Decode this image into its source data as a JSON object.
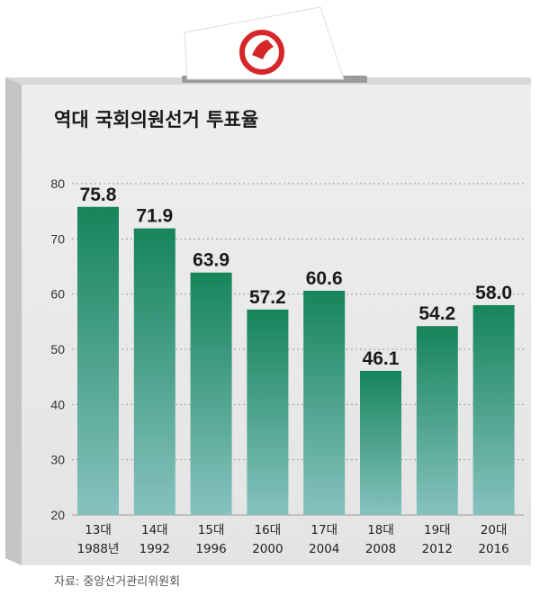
{
  "chart_data": {
    "type": "bar",
    "title": "역대 국회의원선거 투표율",
    "categories": [
      "13대",
      "14대",
      "15대",
      "16대",
      "17대",
      "18대",
      "19대",
      "20대"
    ],
    "years": [
      "1988년",
      "1992",
      "1996",
      "2000",
      "2004",
      "2008",
      "2012",
      "2016"
    ],
    "values": [
      75.8,
      71.9,
      63.9,
      57.2,
      60.6,
      46.1,
      54.2,
      58.0
    ],
    "value_labels": [
      "75.8",
      "71.9",
      "63.9",
      "57.2",
      "60.6",
      "46.1",
      "54.2",
      "58.0"
    ],
    "ylim": [
      20,
      80
    ],
    "yticks": [
      "20",
      "30",
      "40",
      "50",
      "60",
      "70",
      "80"
    ],
    "grid": true,
    "source": "자료: 중앙선거관리위원회"
  },
  "colors": {
    "bar_top": "#16845b",
    "bar_bottom": "#86c2bf",
    "box_face": "#ebebeb",
    "box_side": "#c9c9c9",
    "stamp": "#d6262a"
  }
}
